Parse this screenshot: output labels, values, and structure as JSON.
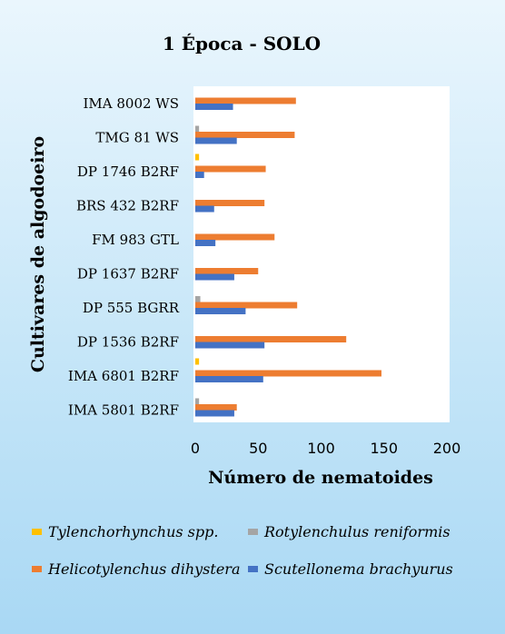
{
  "chart_data": {
    "type": "bar",
    "orientation": "horizontal",
    "title": "1 Época - SOLO",
    "xlabel": "Número de nematoides",
    "ylabel": "Cultivares de algodoeiro",
    "xlim": [
      0,
      200
    ],
    "xticks": [
      "0",
      "50",
      "100",
      "150",
      "200"
    ],
    "grid": false,
    "legend_position": "bottom",
    "categories": [
      "IMA 8002 WS",
      "TMG 81 WS",
      "DP 1746 B2RF",
      "BRS 432 B2RF",
      "FM 983 GTL",
      "DP 1637 B2RF",
      "DP 555 BGRR",
      "DP 1536 B2RF",
      "IMA 6801 B2RF",
      "IMA 5801 B2RF"
    ],
    "series": [
      {
        "name": "Tylenchorhynchus spp.",
        "color": "#FFC000",
        "values": [
          0,
          0,
          3,
          0,
          0,
          0,
          0,
          0,
          3,
          0
        ]
      },
      {
        "name": "Rotylenchulus reniformis",
        "color": "#A5A5A5",
        "values": [
          0,
          3,
          0,
          0,
          0,
          0,
          4,
          0,
          0,
          3
        ]
      },
      {
        "name": "Helicotylenchus dihystera",
        "color": "#ED7D31",
        "values": [
          80,
          79,
          56,
          55,
          63,
          50,
          81,
          120,
          148,
          33
        ]
      },
      {
        "name": "Scutellonema brachyurus",
        "color": "#4472C4",
        "values": [
          30,
          33,
          7,
          15,
          16,
          31,
          40,
          55,
          54,
          31
        ]
      }
    ]
  }
}
